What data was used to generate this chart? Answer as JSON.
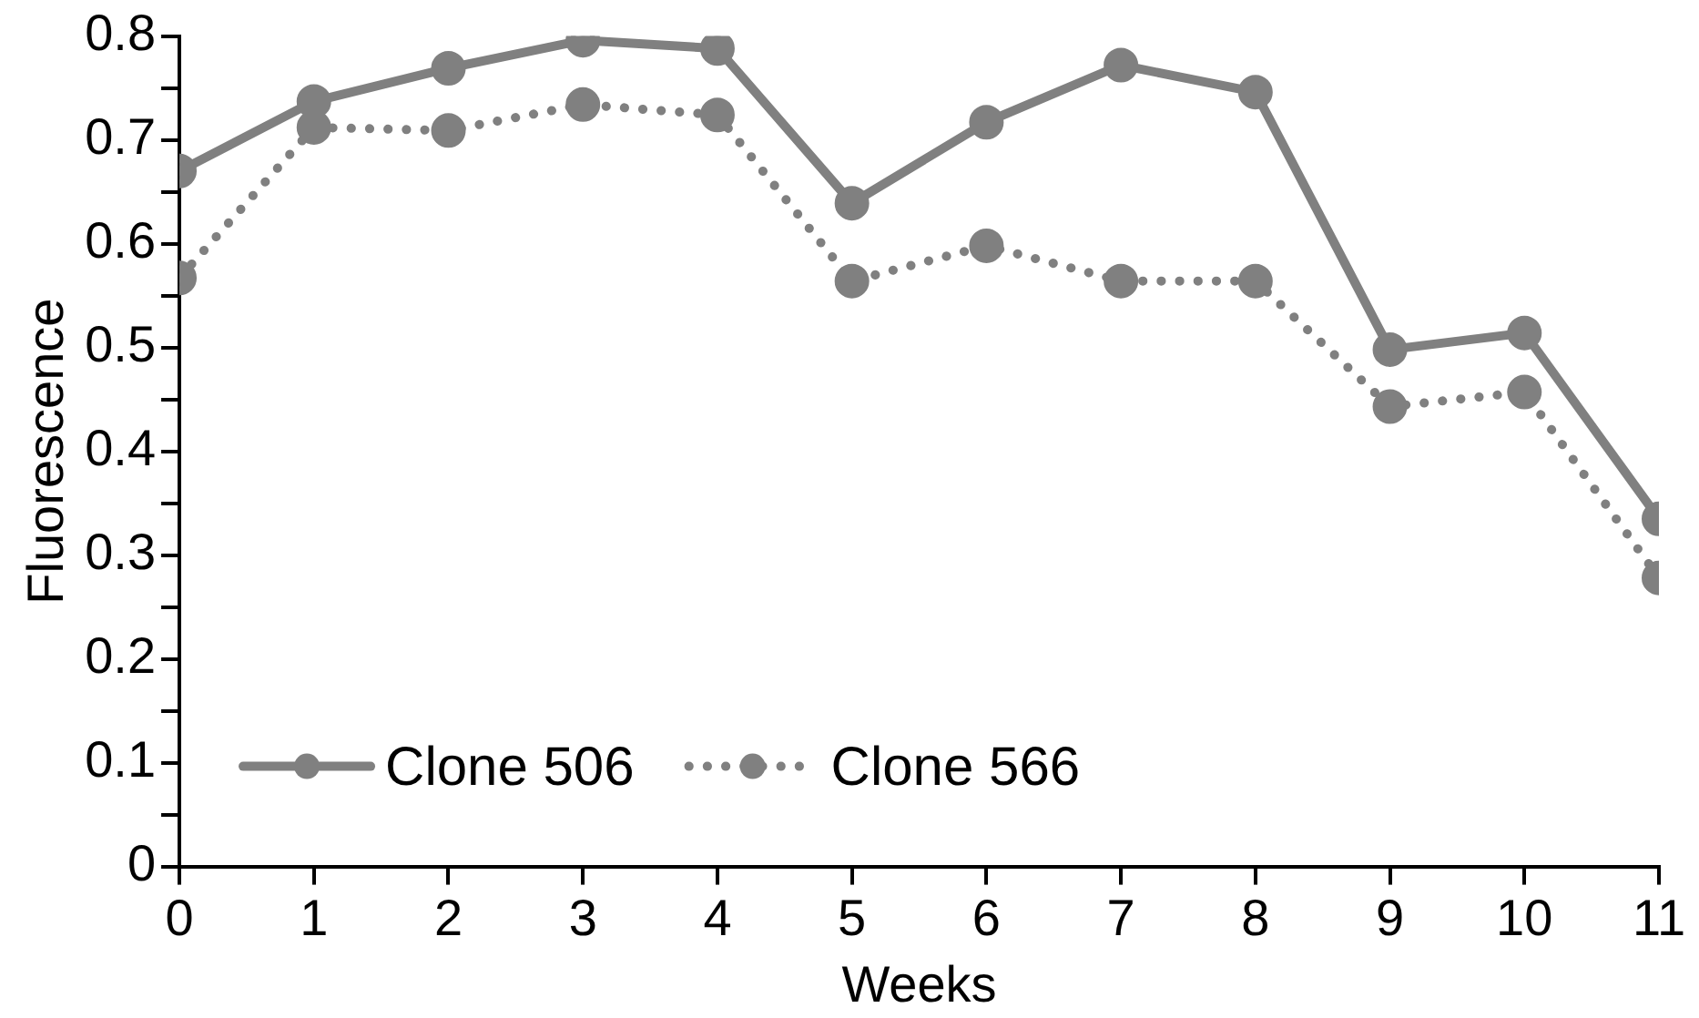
{
  "chart_data": {
    "type": "line",
    "xlabel": "Weeks",
    "ylabel": "Fluorescence",
    "x": [
      0,
      1,
      2,
      3,
      4,
      5,
      6,
      7,
      8,
      9,
      10,
      11
    ],
    "xlim": [
      0,
      11
    ],
    "xticks": [
      0,
      1,
      2,
      3,
      4,
      5,
      6,
      7,
      8,
      9,
      10,
      11
    ],
    "ylim": [
      0,
      0.8
    ],
    "yticks": [
      0,
      {
        "value": 0.05,
        "label": null
      },
      0.1,
      {
        "value": 0.15,
        "label": null
      },
      0.2,
      {
        "value": 0.25,
        "label": null
      },
      0.3,
      {
        "value": 0.35,
        "label": null
      },
      0.4,
      {
        "value": 0.45,
        "label": null
      },
      0.5,
      {
        "value": 0.55,
        "label": null
      },
      0.6,
      {
        "value": 0.65,
        "label": null
      },
      0.7,
      {
        "value": 0.75,
        "label": null
      },
      0.8
    ],
    "series": [
      {
        "name": "Clone 506",
        "color": "#808080",
        "line_style": "solid",
        "values": [
          0.67,
          0.737,
          0.769,
          0.796,
          0.788,
          0.639,
          0.717,
          0.772,
          0.746,
          0.498,
          0.514,
          0.335
        ]
      },
      {
        "name": "Clone 566",
        "color": "#808080",
        "line_style": "dotted",
        "values": [
          0.567,
          0.712,
          0.709,
          0.734,
          0.724,
          0.564,
          0.598,
          0.564,
          0.564,
          0.443,
          0.457,
          0.278
        ]
      }
    ],
    "marker": "circle",
    "grid": false,
    "legend": "bottom left"
  }
}
